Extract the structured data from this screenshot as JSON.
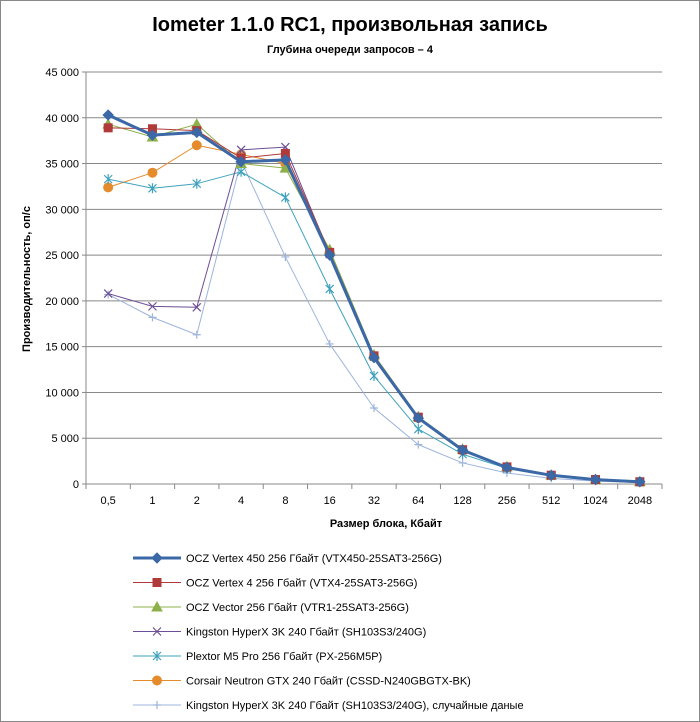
{
  "chart_data": {
    "type": "line",
    "title": "Iometer 1.1.0 RC1, произвольная запись",
    "subtitle": "Глубина очереди запросов – 4",
    "xlabel": "Размер блока, Кбайт",
    "ylabel": "Производительность, оп/с",
    "categories": [
      "0,5",
      "1",
      "2",
      "4",
      "8",
      "16",
      "32",
      "64",
      "128",
      "256",
      "512",
      "1024",
      "2048"
    ],
    "ylim": [
      0,
      45000
    ],
    "yticks": [
      0,
      5000,
      10000,
      15000,
      20000,
      25000,
      30000,
      35000,
      40000,
      45000
    ],
    "ytick_labels": [
      "0",
      "5 000",
      "10 000",
      "15 000",
      "20 000",
      "25 000",
      "30 000",
      "35 000",
      "40 000",
      "45 000"
    ],
    "grid": "horizontal",
    "legend_position": "bottom",
    "series": [
      {
        "name": "OCZ Vertex  450 256 Гбайт (VTX450-25SAT3-256G)",
        "color": "#3b68a6",
        "marker": "diamond",
        "line_width": 3,
        "values": [
          40300,
          38100,
          38400,
          35200,
          35400,
          25000,
          13800,
          7200,
          3700,
          1800,
          950,
          480,
          240
        ]
      },
      {
        "name": "OCZ Vertex  4 256 Гбайт (VTX4-25SAT3-256G)",
        "color": "#b03a3a",
        "marker": "square",
        "line_width": 1,
        "values": [
          38900,
          38800,
          38600,
          35600,
          36100,
          25300,
          14000,
          7300,
          3750,
          1870,
          960,
          490,
          245
        ]
      },
      {
        "name": "OCZ Vector  256 Гбайт (VTR1-25SAT3-256G)",
        "color": "#8db04a",
        "marker": "triangle",
        "line_width": 1,
        "values": [
          39300,
          37900,
          39300,
          35000,
          34500,
          25600,
          14100,
          7350,
          3800,
          1880,
          970,
          490,
          245
        ]
      },
      {
        "name": "Kingston HyperX  3K 240 Гбайт (SH103S3/240G)",
        "color": "#6c4f96",
        "marker": "x",
        "line_width": 1,
        "values": [
          20800,
          19400,
          19300,
          36500,
          36800,
          25100,
          13900,
          7250,
          3700,
          1850,
          950,
          480,
          240
        ]
      },
      {
        "name": "Plextor M5 Pro 256 Гбайт (PX-256M5P)",
        "color": "#3ea2bd",
        "marker": "star",
        "line_width": 1,
        "values": [
          33300,
          32300,
          32800,
          34100,
          31300,
          21300,
          11800,
          6000,
          3250,
          1700,
          880,
          450,
          225
        ]
      },
      {
        "name": "Corsair Neutron GTX 240 Гбайт (CSSD-N240GBGTX-BK)",
        "color": "#e68b2c",
        "marker": "circle",
        "line_width": 1,
        "values": [
          32400,
          34000,
          37000,
          36000,
          35000,
          25200,
          13900,
          7200,
          3650,
          1820,
          940,
          470,
          235
        ]
      },
      {
        "name": "Kingston HyperX  3K 240 Гбайт (SH103S3/240G), случайные даные",
        "color": "#9db4dc",
        "marker": "plus",
        "line_width": 1,
        "values": [
          20700,
          18200,
          16300,
          35300,
          24800,
          15300,
          8300,
          4300,
          2300,
          1200,
          620,
          320,
          160
        ]
      }
    ]
  }
}
